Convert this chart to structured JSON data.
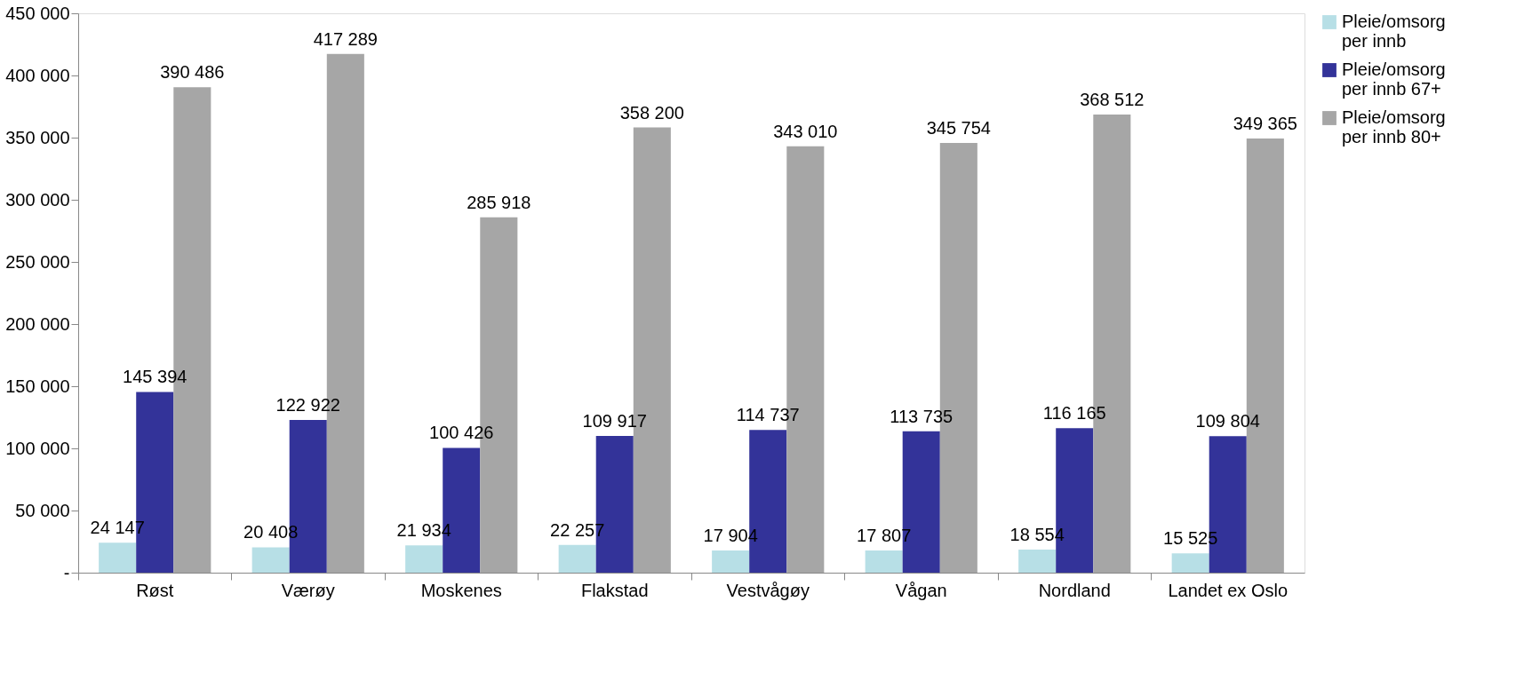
{
  "chart_data": {
    "type": "bar",
    "categories": [
      "Røst",
      "Værøy",
      "Moskenes",
      "Flakstad",
      "Vestvågøy",
      "Vågan",
      "Nordland",
      "Landet ex Oslo"
    ],
    "series": [
      {
        "name": "Pleie/omsorg per innb",
        "color": "#b7dfe6",
        "values": [
          24147,
          20408,
          21934,
          22257,
          17904,
          17807,
          18554,
          15525
        ],
        "value_labels": [
          "24 147",
          "20 408",
          "21 934",
          "22 257",
          "17 904",
          "17 807",
          "18 554",
          "15 525"
        ]
      },
      {
        "name": "Pleie/omsorg per innb 67+",
        "color": "#333399",
        "values": [
          145394,
          122922,
          100426,
          109917,
          114737,
          113735,
          116165,
          109804
        ],
        "value_labels": [
          "145 394",
          "122 922",
          "100 426",
          "109 917",
          "114 737",
          "113 735",
          "116 165",
          "109 804"
        ]
      },
      {
        "name": "Pleie/omsorg per innb 80+",
        "color": "#a6a6a6",
        "values": [
          390486,
          417289,
          285918,
          358200,
          343010,
          345754,
          368512,
          349365
        ],
        "value_labels": [
          "390 486",
          "417 289",
          "285 918",
          "358 200",
          "343 010",
          "345 754",
          "368 512",
          "349 365"
        ]
      }
    ],
    "ylim": [
      0,
      450000
    ],
    "yticks": [
      {
        "value": 0,
        "label": "-"
      },
      {
        "value": 50000,
        "label": "50 000"
      },
      {
        "value": 100000,
        "label": "100 000"
      },
      {
        "value": 150000,
        "label": "150 000"
      },
      {
        "value": 200000,
        "label": "200 000"
      },
      {
        "value": 250000,
        "label": "250 000"
      },
      {
        "value": 300000,
        "label": "300 000"
      },
      {
        "value": 350000,
        "label": "350 000"
      },
      {
        "value": 400000,
        "label": "400 000"
      },
      {
        "value": 450000,
        "label": "450 000"
      }
    ],
    "grid": false,
    "legend": "right"
  }
}
